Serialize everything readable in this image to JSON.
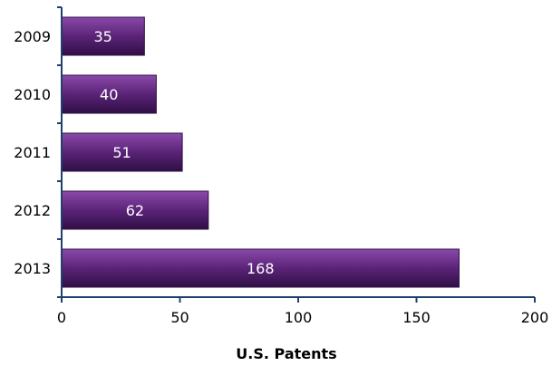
{
  "chart_data": {
    "type": "bar",
    "orientation": "horizontal",
    "categories": [
      "2009",
      "2010",
      "2011",
      "2012",
      "2013"
    ],
    "values": [
      35,
      40,
      51,
      62,
      168
    ],
    "data_labels": [
      "35",
      "40",
      "51",
      "62",
      "168"
    ],
    "title": "",
    "xlabel": "U.S. Patents",
    "ylabel": "",
    "xlim": [
      0,
      200
    ],
    "x_ticks": [
      0,
      50,
      100,
      150,
      200
    ],
    "x_tick_labels": [
      "0",
      "50",
      "100",
      "150",
      "200"
    ],
    "grid": false,
    "legend": "none",
    "colors": {
      "bar_fill": "#5b2378",
      "bar_highlight": "#8a4aa8",
      "bar_edge": "#2f0f45",
      "axis": "#1f3f6e"
    }
  }
}
